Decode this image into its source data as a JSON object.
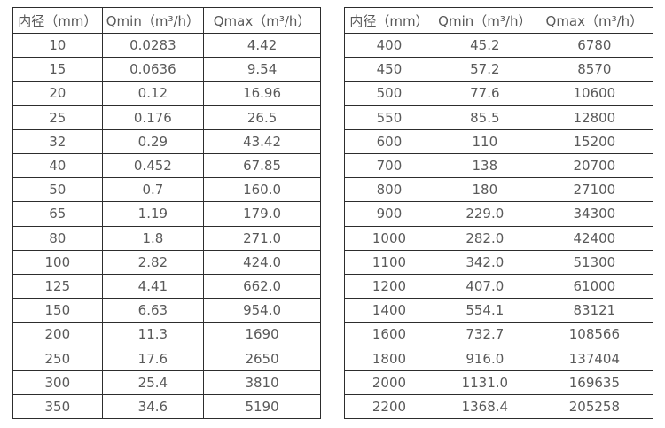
{
  "page": {
    "background": "#ffffff",
    "border_color": "#2d2d2d",
    "text_color": "#595959"
  },
  "chart_data": [
    {
      "type": "table",
      "title": "",
      "columns": [
        "内径（mm）",
        "Qmin（m³/h）",
        "Qmax（m³/h）"
      ],
      "rows": [
        [
          "10",
          "0.0283",
          "4.42"
        ],
        [
          "15",
          "0.0636",
          "9.54"
        ],
        [
          "20",
          "0.12",
          "16.96"
        ],
        [
          "25",
          "0.176",
          "26.5"
        ],
        [
          "32",
          "0.29",
          "43.42"
        ],
        [
          "40",
          "0.452",
          "67.85"
        ],
        [
          "50",
          "0.7",
          "160.0"
        ],
        [
          "65",
          "1.19",
          "179.0"
        ],
        [
          "80",
          "1.8",
          "271.0"
        ],
        [
          "100",
          "2.82",
          "424.0"
        ],
        [
          "125",
          "4.41",
          "662.0"
        ],
        [
          "150",
          "6.63",
          "954.0"
        ],
        [
          "200",
          "11.3",
          "1690"
        ],
        [
          "250",
          "17.6",
          "2650"
        ],
        [
          "300",
          "25.4",
          "3810"
        ],
        [
          "350",
          "34.6",
          "5190"
        ]
      ]
    },
    {
      "type": "table",
      "title": "",
      "columns": [
        "内径（mm）",
        "Qmin（m³/h）",
        "Qmax（m³/h）"
      ],
      "rows": [
        [
          "400",
          "45.2",
          "6780"
        ],
        [
          "450",
          "57.2",
          "8570"
        ],
        [
          "500",
          "77.6",
          "10600"
        ],
        [
          "550",
          "85.5",
          "12800"
        ],
        [
          "600",
          "110",
          "15200"
        ],
        [
          "700",
          "138",
          "20700"
        ],
        [
          "800",
          "180",
          "27100"
        ],
        [
          "900",
          "229.0",
          "34300"
        ],
        [
          "1000",
          "282.0",
          "42400"
        ],
        [
          "1100",
          "342.0",
          "51300"
        ],
        [
          "1200",
          "407.0",
          "61000"
        ],
        [
          "1400",
          "554.1",
          "83121"
        ],
        [
          "1600",
          "732.7",
          "108566"
        ],
        [
          "1800",
          "916.0",
          "137404"
        ],
        [
          "2000",
          "1131.0",
          "169635"
        ],
        [
          "2200",
          "1368.4",
          "205258"
        ]
      ]
    }
  ]
}
